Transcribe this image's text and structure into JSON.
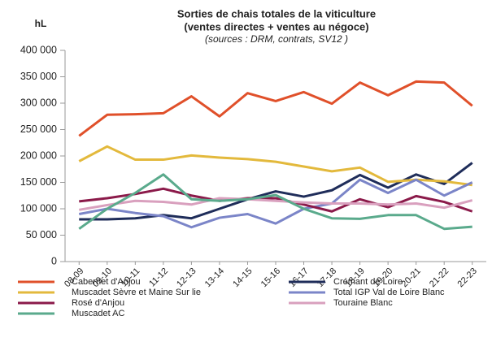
{
  "chart_data": {
    "type": "line",
    "title": "Sorties de chais totales de la viticulture",
    "title_line2": "(ventes directes + ventes au négoce)",
    "subtitle": "(sources : DRM, contrats, SV12 )",
    "y_label": "hL",
    "categories": [
      "08-09",
      "09-10",
      "10-11",
      "11-12",
      "12-13",
      "13-14",
      "14-15",
      "15-16",
      "16-17",
      "17-18",
      "18-19",
      "19-20",
      "20-21",
      "21-22",
      "22-23"
    ],
    "series": [
      {
        "name": "Cabernet d'Anjou",
        "color": "#e0502a",
        "values": [
          238000,
          278000,
          279000,
          281000,
          313000,
          275000,
          319000,
          304000,
          321000,
          299000,
          339000,
          315000,
          341000,
          339000,
          295000
        ]
      },
      {
        "name": "Crémant de Loire",
        "color": "#1f2d5a",
        "values": [
          80000,
          80000,
          82000,
          88000,
          82000,
          100000,
          118000,
          133000,
          123000,
          135000,
          164000,
          140000,
          165000,
          147000,
          187000
        ]
      },
      {
        "name": "Muscadet Sèvre et Maine Sur lie",
        "color": "#e3b93c",
        "values": [
          190000,
          218000,
          193000,
          193000,
          201000,
          197000,
          194000,
          189000,
          180000,
          171000,
          178000,
          151000,
          155000,
          152000,
          145000
        ]
      },
      {
        "name": "Total IGP Val de Loire Blanc",
        "color": "#7b85c8",
        "values": [
          90000,
          100000,
          92000,
          86000,
          65000,
          83000,
          90000,
          72000,
          100000,
          110000,
          155000,
          130000,
          155000,
          125000,
          150000
        ]
      },
      {
        "name": "Rosé d'Anjou",
        "color": "#8b1a4a",
        "values": [
          114000,
          120000,
          128000,
          138000,
          125000,
          115000,
          120000,
          120000,
          108000,
          95000,
          118000,
          103000,
          124000,
          113000,
          95000
        ]
      },
      {
        "name": "Touraine Blanc",
        "color": "#d9a0be",
        "values": [
          98000,
          107000,
          115000,
          113000,
          108000,
          120000,
          118000,
          115000,
          112000,
          110000,
          110000,
          108000,
          110000,
          102000,
          116000
        ]
      },
      {
        "name": "Muscadet AC",
        "color": "#5aaa8c",
        "values": [
          62000,
          100000,
          130000,
          165000,
          118000,
          115000,
          118000,
          126000,
          100000,
          82000,
          81000,
          88000,
          88000,
          62000,
          66000
        ]
      }
    ],
    "ylim": [
      0,
      400000
    ],
    "yticks": [
      {
        "value": 0,
        "label": "0"
      },
      {
        "value": 50000,
        "label": "50 000"
      },
      {
        "value": 100000,
        "label": "100 000"
      },
      {
        "value": 150000,
        "label": "150 000"
      },
      {
        "value": 200000,
        "label": "200 000"
      },
      {
        "value": 250000,
        "label": "250 000"
      },
      {
        "value": 300000,
        "label": "300 000"
      },
      {
        "value": 350000,
        "label": "350 000"
      },
      {
        "value": 400000,
        "label": "400 000"
      }
    ],
    "legend": "bottom"
  }
}
